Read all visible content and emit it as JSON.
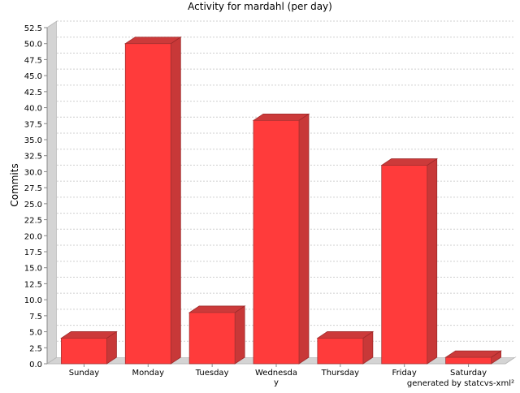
{
  "chart_data": {
    "type": "bar",
    "title": "Activity for mardahl (per day)",
    "xlabel": "",
    "ylabel": "Commits",
    "categories": [
      "Sunday",
      "Monday",
      "Tuesday",
      "Wednesday",
      "Thursday",
      "Friday",
      "Saturday"
    ],
    "category_labels": [
      [
        "Sunday"
      ],
      [
        "Monday"
      ],
      [
        "Tuesday"
      ],
      [
        "Wednesda",
        "y"
      ],
      [
        "Thursday"
      ],
      [
        "Friday"
      ],
      [
        "Saturday"
      ]
    ],
    "values": [
      4,
      50,
      8,
      38,
      4,
      31,
      1
    ],
    "ylim": [
      0,
      52.5
    ],
    "yticks": [
      "0.0",
      "2.5",
      "5.0",
      "7.5",
      "10.0",
      "12.5",
      "15.0",
      "17.5",
      "20.0",
      "22.5",
      "25.0",
      "27.5",
      "30.0",
      "32.5",
      "35.0",
      "37.5",
      "40.0",
      "42.5",
      "45.0",
      "47.5",
      "50.0",
      "52.5"
    ],
    "grid": true,
    "three_d": true,
    "bar_color": "#ff3b3b",
    "bar_top_color": "#cc3a3a",
    "bar_side_color": "#c83838",
    "wall_color": "#d4d4d4",
    "footer": "generated by statcvs-xml²"
  }
}
